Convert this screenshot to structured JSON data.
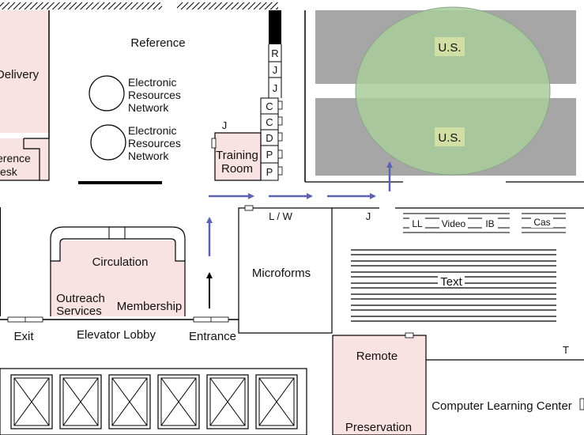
{
  "floor_plan": {
    "rooms": {
      "delivery": "Delivery",
      "reference": "Reference",
      "reference_desk_line1": "erence",
      "reference_desk_line2": "esk",
      "training_room_line1": "Training",
      "training_room_line2": "Room",
      "circulation": "Circulation",
      "outreach_line1": "Outreach",
      "outreach_line2": "Services",
      "membership": "Membership",
      "elevator_lobby": "Elevator Lobby",
      "exit": "Exit",
      "entrance": "Entrance",
      "microforms": "Microforms",
      "lw": "L / W",
      "remote": "Remote",
      "preservation": "Preservation",
      "computer_learning_center": "Computer Learning Center"
    },
    "network_label": [
      "Electronic",
      "Resources",
      "Network"
    ],
    "shelf_labels": [
      "R",
      "J",
      "J",
      "C",
      "C",
      "D",
      "P",
      "P"
    ],
    "j_labels": {
      "training": "J",
      "lw_side": "J"
    },
    "us_labels": [
      "U.S.",
      "U.S."
    ],
    "media": {
      "ll": "LL",
      "video": "Video",
      "ib": "IB",
      "cas": "Cas"
    },
    "text_stacks": "Text",
    "t_label": "T",
    "colors": {
      "room_pink": "#f9e2e2",
      "stack_gray": "#a6a6a6",
      "overlay_green": "#a9cc9a",
      "arrow_blue": "#5b63b0",
      "label_bg": "#eeeeaa"
    }
  }
}
